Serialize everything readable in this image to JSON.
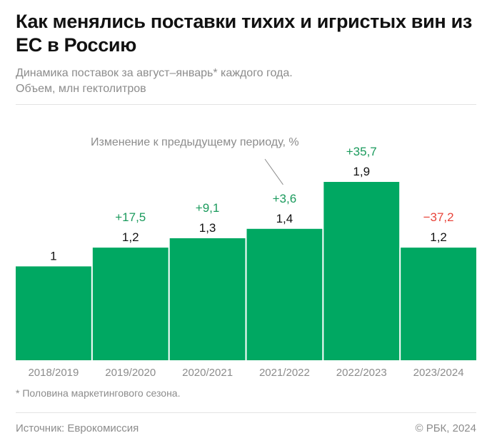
{
  "header": {
    "title": "Как менялись поставки тихих и игристых вин из ЕС в Россию",
    "subtitle_line1": "Динамика поставок за август–январь* каждого года.",
    "subtitle_line2": "Объем, млн гектолитров"
  },
  "chart_data": {
    "type": "bar",
    "categories": [
      "2018/2019",
      "2019/2020",
      "2020/2021",
      "2021/2022",
      "2022/2023",
      "2023/2024"
    ],
    "values": [
      1.0,
      1.2,
      1.3,
      1.4,
      1.9,
      1.2
    ],
    "value_labels": [
      "1",
      "1,2",
      "1,3",
      "1,4",
      "1,9",
      "1,2"
    ],
    "change_labels": [
      "",
      "+17,5",
      "+9,1",
      "+3,6",
      "+35,7",
      "−37,2"
    ],
    "annotation": "Изменение к предыдущему периоду, %",
    "ylim": [
      0,
      1.9
    ],
    "grid": false,
    "colors": {
      "bar": "#00a862",
      "positive": "#1a9a5c",
      "negative": "#e8443a",
      "tick": "#8c8c8c"
    }
  },
  "footer": {
    "footnote": "* Половина маркетингового сезона.",
    "source": "Источник: Еврокомиссия",
    "copyright": "© РБК, 2024"
  }
}
